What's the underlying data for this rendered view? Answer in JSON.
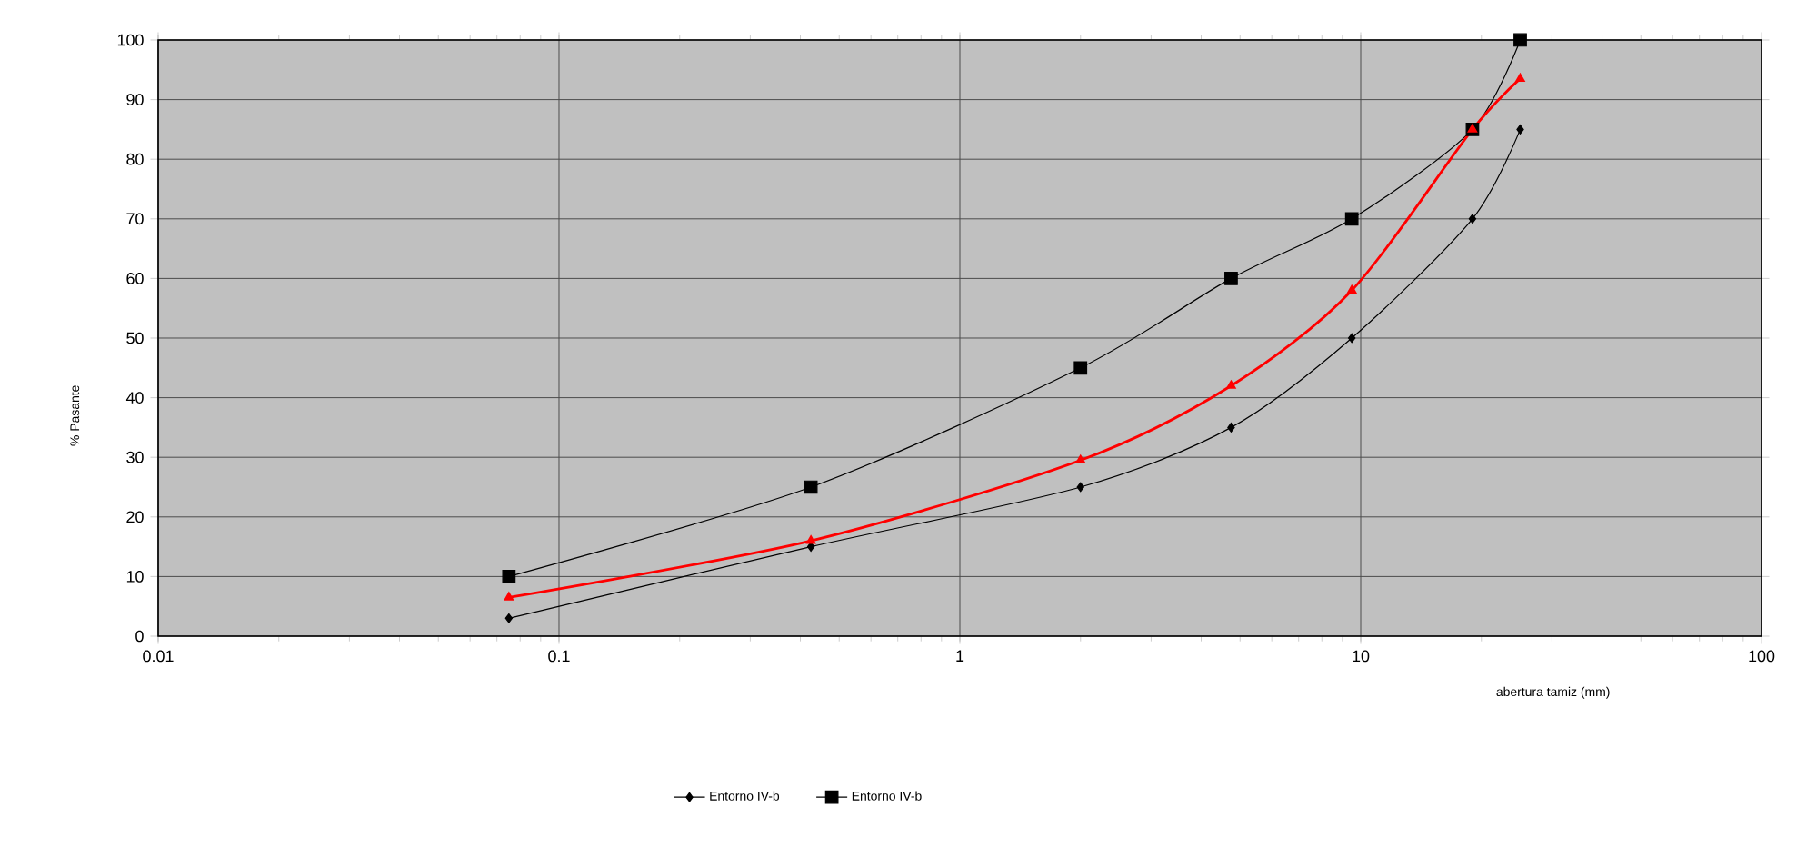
{
  "chart_data": {
    "type": "line",
    "xlabel": "abertura tamiz (mm)",
    "ylabel": "% Pasante",
    "log": "x",
    "xlim": [
      0.01,
      100
    ],
    "xticks": [
      0.01,
      0.1,
      1,
      10,
      100
    ],
    "ylim": [
      0,
      100
    ],
    "yticks": [
      0,
      10,
      20,
      30,
      40,
      50,
      60,
      70,
      80,
      90,
      100
    ],
    "grid": true,
    "legend": "bottom",
    "x": [
      0.075,
      0.425,
      2,
      4.75,
      9.5,
      19,
      25
    ],
    "series": [
      {
        "name": "Entorno IV-b",
        "color": "#000000",
        "marker": "diamond",
        "values": [
          3,
          15,
          25,
          35,
          50,
          70,
          85
        ]
      },
      {
        "name": "Entorno IV-b",
        "color": "#000000",
        "marker": "square",
        "values": [
          10,
          25,
          45,
          60,
          70,
          85,
          100
        ]
      },
      {
        "color": "#ff0000",
        "marker": "triangle",
        "values": [
          6.5,
          16,
          29.5,
          42,
          58,
          85,
          93.5
        ]
      }
    ]
  }
}
